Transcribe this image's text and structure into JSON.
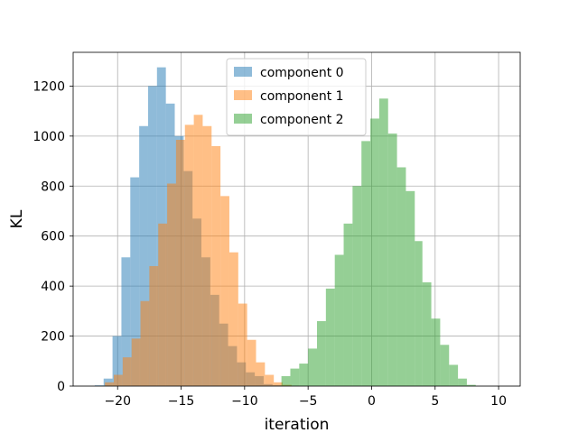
{
  "chart_data": {
    "type": "bar",
    "title": "",
    "xlabel": "iteration",
    "ylabel": "KL",
    "xlim": [
      -23.5,
      11.7
    ],
    "ylim": [
      0,
      1335
    ],
    "xticks": [
      -20,
      -15,
      -10,
      -5,
      0,
      5,
      10
    ],
    "yticks": [
      0,
      200,
      400,
      600,
      800,
      1000,
      1200
    ],
    "xtick_labels": [
      "−20",
      "−15",
      "−10",
      "−5",
      "0",
      "5",
      "10"
    ],
    "ytick_labels": [
      "0",
      "200",
      "400",
      "600",
      "800",
      "1000",
      "1200"
    ],
    "grid": true,
    "legend_position": "top-center",
    "series": [
      {
        "name": "component 0",
        "color": "#1f77b4",
        "opacity": 0.5,
        "bin_edges": [
          -21.8,
          -21.1,
          -20.4,
          -19.7,
          -19.0,
          -18.3,
          -17.6,
          -16.9,
          -16.2,
          -15.5,
          -14.8,
          -14.1,
          -13.4,
          -12.7,
          -12.0,
          -11.3,
          -10.6,
          -9.9,
          -9.2,
          -8.5,
          -7.8,
          -7.1,
          -6.4,
          -5.7
        ],
        "counts": [
          3,
          30,
          200,
          515,
          835,
          1040,
          1200,
          1275,
          1130,
          1000,
          860,
          670,
          515,
          365,
          250,
          160,
          95,
          55,
          40,
          8,
          4,
          2,
          1
        ]
      },
      {
        "name": "component 1",
        "color": "#ff7f0e",
        "opacity": 0.5,
        "bin_edges": [
          -21.0,
          -20.3,
          -19.6,
          -18.9,
          -18.2,
          -17.5,
          -16.8,
          -16.1,
          -15.4,
          -14.7,
          -14.0,
          -13.3,
          -12.6,
          -11.9,
          -11.2,
          -10.5,
          -9.8,
          -9.1,
          -8.4,
          -7.7,
          -7.0,
          -6.3
        ],
        "counts": [
          15,
          45,
          115,
          190,
          340,
          480,
          650,
          810,
          985,
          1045,
          1085,
          1040,
          960,
          760,
          535,
          330,
          185,
          95,
          45,
          15,
          5
        ]
      },
      {
        "name": "component 2",
        "color": "#2ca02c",
        "opacity": 0.5,
        "bin_edges": [
          -7.1,
          -6.4,
          -5.7,
          -5.0,
          -4.3,
          -3.6,
          -2.9,
          -2.2,
          -1.5,
          -0.8,
          -0.1,
          0.6,
          1.3,
          2.0,
          2.7,
          3.4,
          4.0,
          4.7,
          5.4,
          6.1,
          6.8,
          7.5,
          8.2
        ],
        "counts": [
          40,
          70,
          90,
          150,
          260,
          390,
          525,
          650,
          800,
          980,
          1070,
          1150,
          1010,
          875,
          780,
          580,
          415,
          270,
          165,
          85,
          30,
          5
        ]
      }
    ]
  }
}
